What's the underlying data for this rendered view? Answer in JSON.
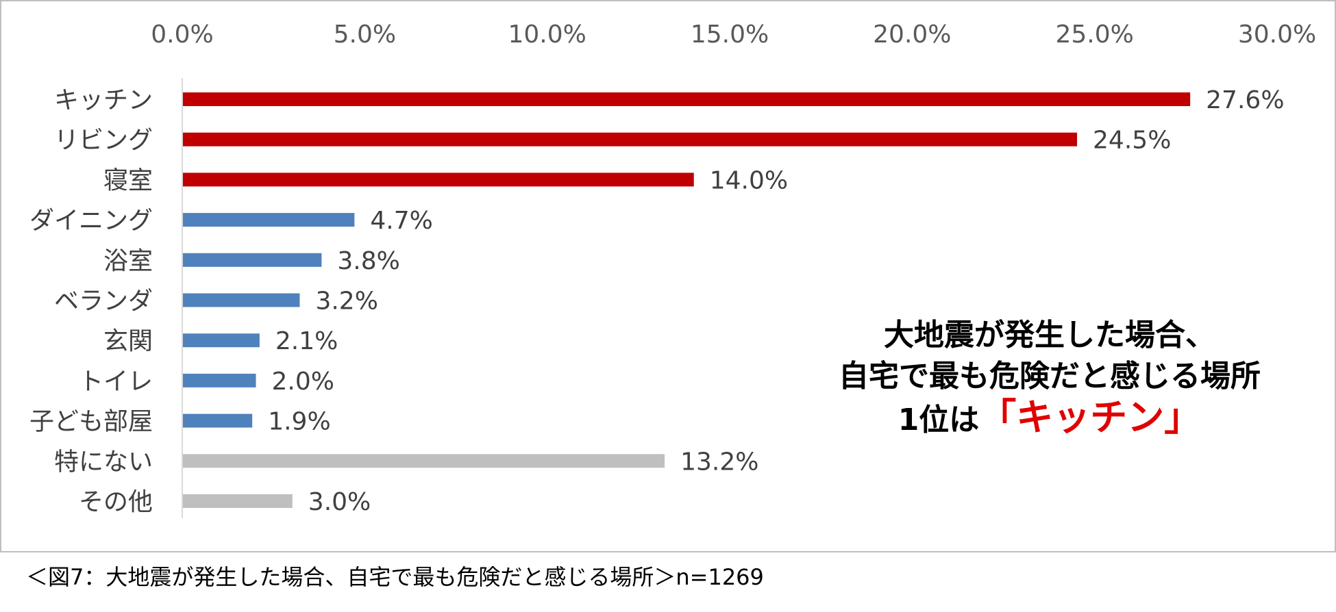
{
  "chart_data": {
    "type": "bar",
    "orientation": "horizontal",
    "categories": [
      "キッチン",
      "リビング",
      "寝室",
      "ダイニング",
      "浴室",
      "ベランダ",
      "玄関",
      "トイレ",
      "子ども部屋",
      "特にない",
      "その他"
    ],
    "values": [
      27.6,
      24.5,
      14.0,
      4.7,
      3.8,
      3.2,
      2.1,
      2.0,
      1.9,
      13.2,
      3.0
    ],
    "value_labels": [
      "27.6%",
      "24.5%",
      "14.0%",
      "4.7%",
      "3.8%",
      "3.2%",
      "2.1%",
      "2.0%",
      "1.9%",
      "13.2%",
      "3.0%"
    ],
    "colors": [
      "#c00000",
      "#c00000",
      "#c00000",
      "#4f81bd",
      "#4f81bd",
      "#4f81bd",
      "#4f81bd",
      "#4f81bd",
      "#4f81bd",
      "#bfbfbf",
      "#bfbfbf"
    ],
    "xlim": [
      0,
      30
    ],
    "x_ticks": [
      "0.0%",
      "5.0%",
      "10.0%",
      "15.0%",
      "20.0%",
      "25.0%",
      "30.0%"
    ],
    "x_axis_position": "top",
    "grid": false,
    "legend": "none"
  },
  "headline": {
    "line1": "大地震が発生した場合、",
    "line2": "自宅で最も危険だと感じる場所",
    "line3_prefix": "1位は",
    "line3_accent": "「キッチン」"
  },
  "caption": "＜図7：大地震が発生した場合、自宅で最も危険だと感じる場所＞n=1269"
}
